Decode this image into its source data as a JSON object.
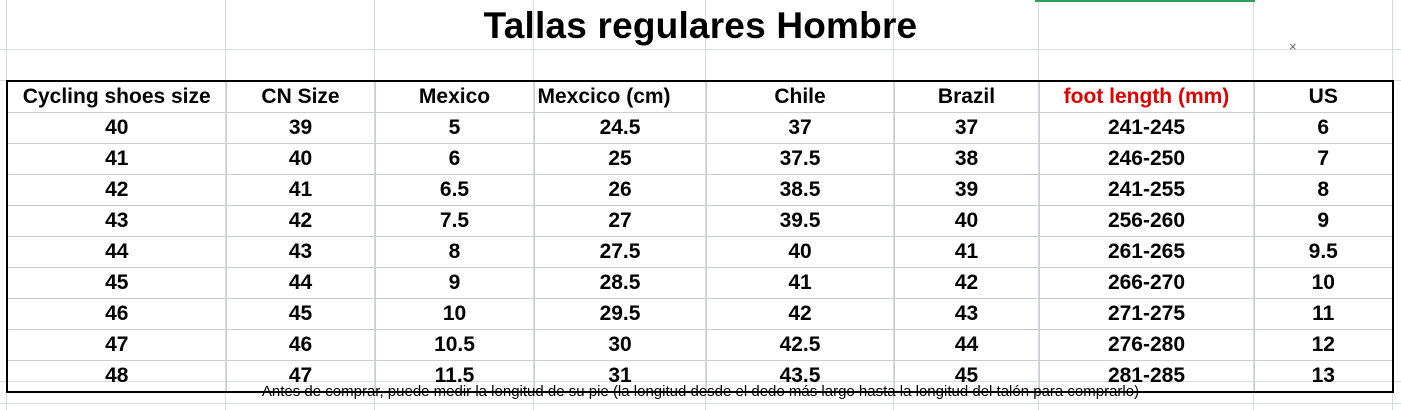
{
  "title": "Tallas regulares Hombre",
  "close_symbol": "×",
  "headers": [
    "Cycling shoes size",
    "CN Size",
    "Mexico",
    "Mexcico  (cm)",
    "Chile",
    "Brazil",
    "foot length  (mm)",
    "US"
  ],
  "header_highlight_color": "#e00000",
  "rows": [
    [
      "40",
      "39",
      "5",
      "24.5",
      "37",
      "37",
      "241-245",
      "6"
    ],
    [
      "41",
      "40",
      "6",
      "25",
      "37.5",
      "38",
      "246-250",
      "7"
    ],
    [
      "42",
      "41",
      "6.5",
      "26",
      "38.5",
      "39",
      "241-255",
      "8"
    ],
    [
      "43",
      "42",
      "7.5",
      "27",
      "39.5",
      "40",
      "256-260",
      "9"
    ],
    [
      "44",
      "43",
      "8",
      "27.5",
      "40",
      "41",
      "261-265",
      "9.5"
    ],
    [
      "45",
      "44",
      "9",
      "28.5",
      "41",
      "42",
      "266-270",
      "10"
    ],
    [
      "46",
      "45",
      "10",
      "29.5",
      "42",
      "43",
      "271-275",
      "11"
    ],
    [
      "47",
      "46",
      "10.5",
      "30",
      "42.5",
      "44",
      "276-280",
      "12"
    ],
    [
      "48",
      "47",
      "11.5",
      "31",
      "43.5",
      "45",
      "281-285",
      "13"
    ]
  ],
  "note": "Antes de comprar, puede medir la longitud de su pie (la longitud desde el dedo más largo hasta la longitud del talón para comprarlo)"
}
